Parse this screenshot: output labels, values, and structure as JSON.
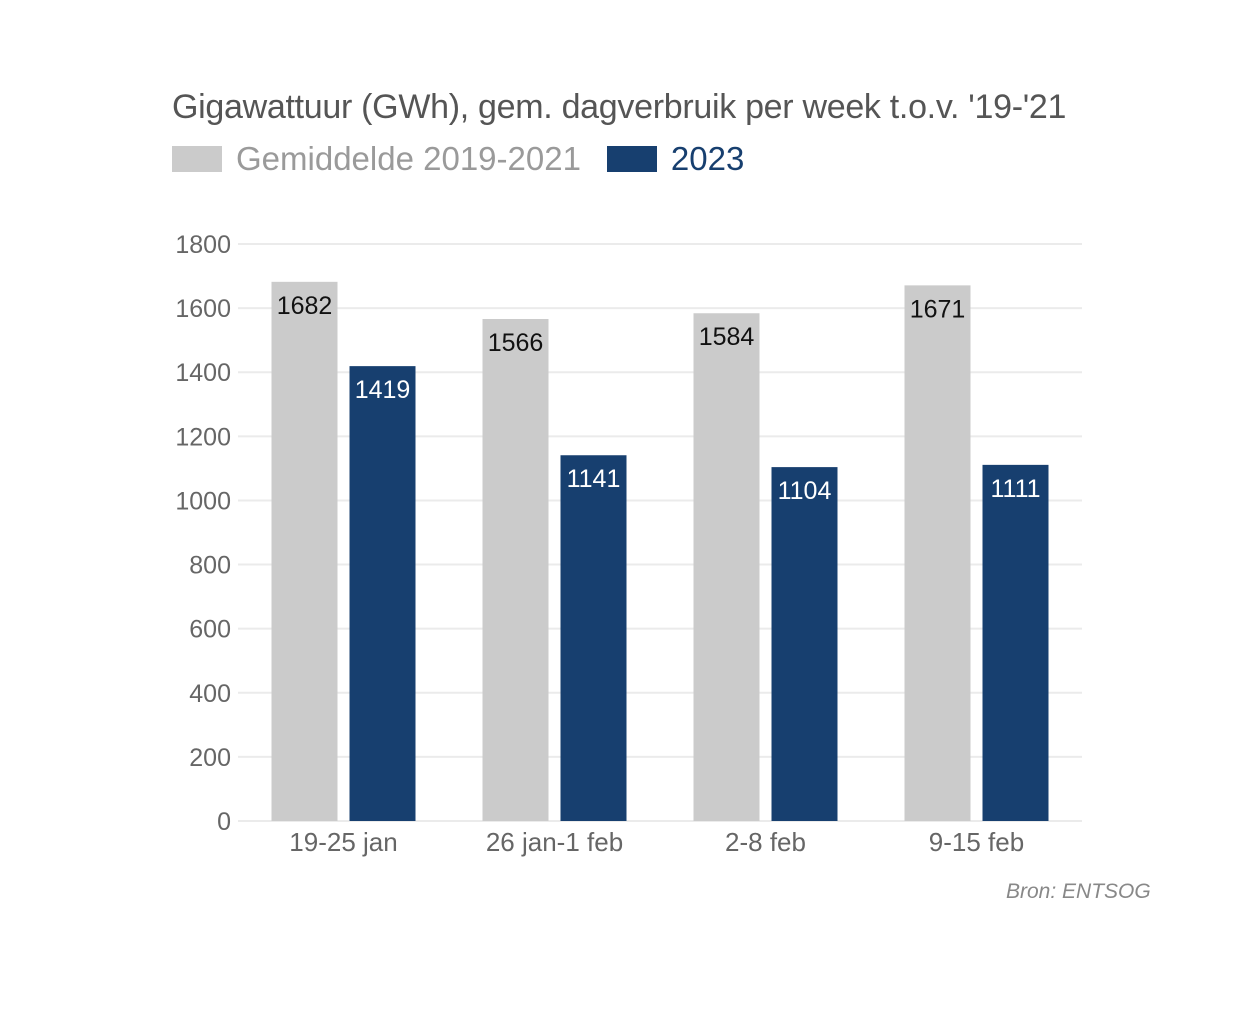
{
  "colors": {
    "series_avg": "#cbcbcb",
    "series_2023": "#173f6f",
    "grid": "#ebebeb",
    "axis_text": "#666666",
    "label_dark": "#111111",
    "label_light": "#ffffff",
    "legend_avg_text": "#9a9a9a",
    "legend_2023_text": "#173f6f"
  },
  "legend": {
    "items": [
      {
        "label": "Gemiddelde 2019-2021",
        "color": "#cbcbcb",
        "text_color": "#9a9a9a"
      },
      {
        "label": "2023",
        "color": "#173f6f",
        "text_color": "#173f6f"
      }
    ]
  },
  "source": "Bron: ENTSOG",
  "chart_data": {
    "type": "bar",
    "title": "Gigawattuur (GWh), gem. dagverbruik per week t.o.v. '19-'21",
    "xlabel": "",
    "ylabel": "",
    "categories": [
      "19-25 jan",
      "26 jan-1 feb",
      "2-8 feb",
      "9-15 feb"
    ],
    "series": [
      {
        "name": "Gemiddelde 2019-2021",
        "values": [
          1682,
          1566,
          1584,
          1671
        ]
      },
      {
        "name": "2023",
        "values": [
          1419,
          1141,
          1104,
          1111
        ]
      }
    ],
    "ylim": [
      0,
      1800
    ],
    "yticks": [
      0,
      200,
      400,
      600,
      800,
      1000,
      1200,
      1400,
      1600,
      1800
    ],
    "grid": true,
    "legend_position": "top-left",
    "data_labels": true
  }
}
